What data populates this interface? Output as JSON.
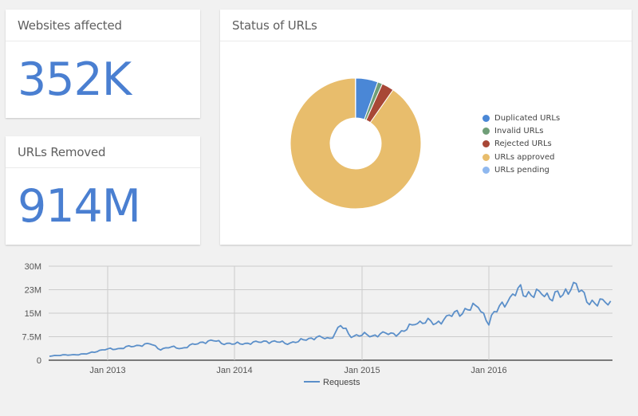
{
  "cards": {
    "websites_affected": {
      "title": "Websites affected",
      "value": "352K"
    },
    "urls_removed": {
      "title": "URLs Removed",
      "value": "914M"
    },
    "status_of_urls": {
      "title": "Status of URLs"
    }
  },
  "colors": {
    "accent": "#4a7fd1",
    "background": "#f1f1f1",
    "line": "#5b8fc9"
  },
  "chart_data": [
    {
      "type": "pie",
      "title": "Status of URLs",
      "donut": true,
      "categories": [
        "Duplicated URLs",
        "Invalid URLs",
        "Rejected URLs",
        "URLs approved",
        "URLs pending"
      ],
      "values": [
        5.5,
        1.2,
        3.0,
        90.2,
        0.1
      ],
      "colors": [
        "#4a87d6",
        "#6f9e77",
        "#a84736",
        "#e8bd6c",
        "#8fb8ef"
      ],
      "legend_position": "right"
    },
    {
      "type": "line",
      "title": "",
      "xlabel": "",
      "ylabel": "",
      "ylim": [
        0,
        30000000
      ],
      "yticks": [
        "0",
        "7.5M",
        "15M",
        "23M",
        "30M"
      ],
      "xticks": [
        "Jan 2013",
        "Jan 2014",
        "Jan 2015",
        "Jan 2016"
      ],
      "grid": true,
      "legend_position": "bottom",
      "series": [
        {
          "name": "Requests",
          "color": "#5b8fc9",
          "x": [
            "2012-07",
            "2012-08",
            "2012-09",
            "2012-10",
            "2012-11",
            "2012-12",
            "2013-01",
            "2013-02",
            "2013-03",
            "2013-04",
            "2013-05",
            "2013-06",
            "2013-07",
            "2013-08",
            "2013-09",
            "2013-10",
            "2013-11",
            "2013-12",
            "2014-01",
            "2014-02",
            "2014-03",
            "2014-04",
            "2014-05",
            "2014-06",
            "2014-07",
            "2014-08",
            "2014-09",
            "2014-10",
            "2014-11",
            "2014-12",
            "2015-01",
            "2015-02",
            "2015-03",
            "2015-04",
            "2015-05",
            "2015-06",
            "2015-07",
            "2015-08",
            "2015-09",
            "2015-10",
            "2015-11",
            "2015-12",
            "2016-01",
            "2016-02",
            "2016-03",
            "2016-04",
            "2016-05",
            "2016-06",
            "2016-07",
            "2016-08",
            "2016-09",
            "2016-10",
            "2016-11",
            "2016-12"
          ],
          "values": [
            1200000,
            1500000,
            1600000,
            1800000,
            2000000,
            3000000,
            3500000,
            3700000,
            4200000,
            4800000,
            5200000,
            3600000,
            4200000,
            3800000,
            4800000,
            5800000,
            6200000,
            5500000,
            5200000,
            5400000,
            5600000,
            6000000,
            5800000,
            5500000,
            6000000,
            7000000,
            7200000,
            6800000,
            11000000,
            7800000,
            8200000,
            7800000,
            8500000,
            8200000,
            9200000,
            12000000,
            12500000,
            11800000,
            13500000,
            15000000,
            16000000,
            17500000,
            12000000,
            17500000,
            19500000,
            22500000,
            20500000,
            21500000,
            20500000,
            21000000,
            24500000,
            20000000,
            18000000,
            18500000
          ]
        }
      ]
    }
  ]
}
